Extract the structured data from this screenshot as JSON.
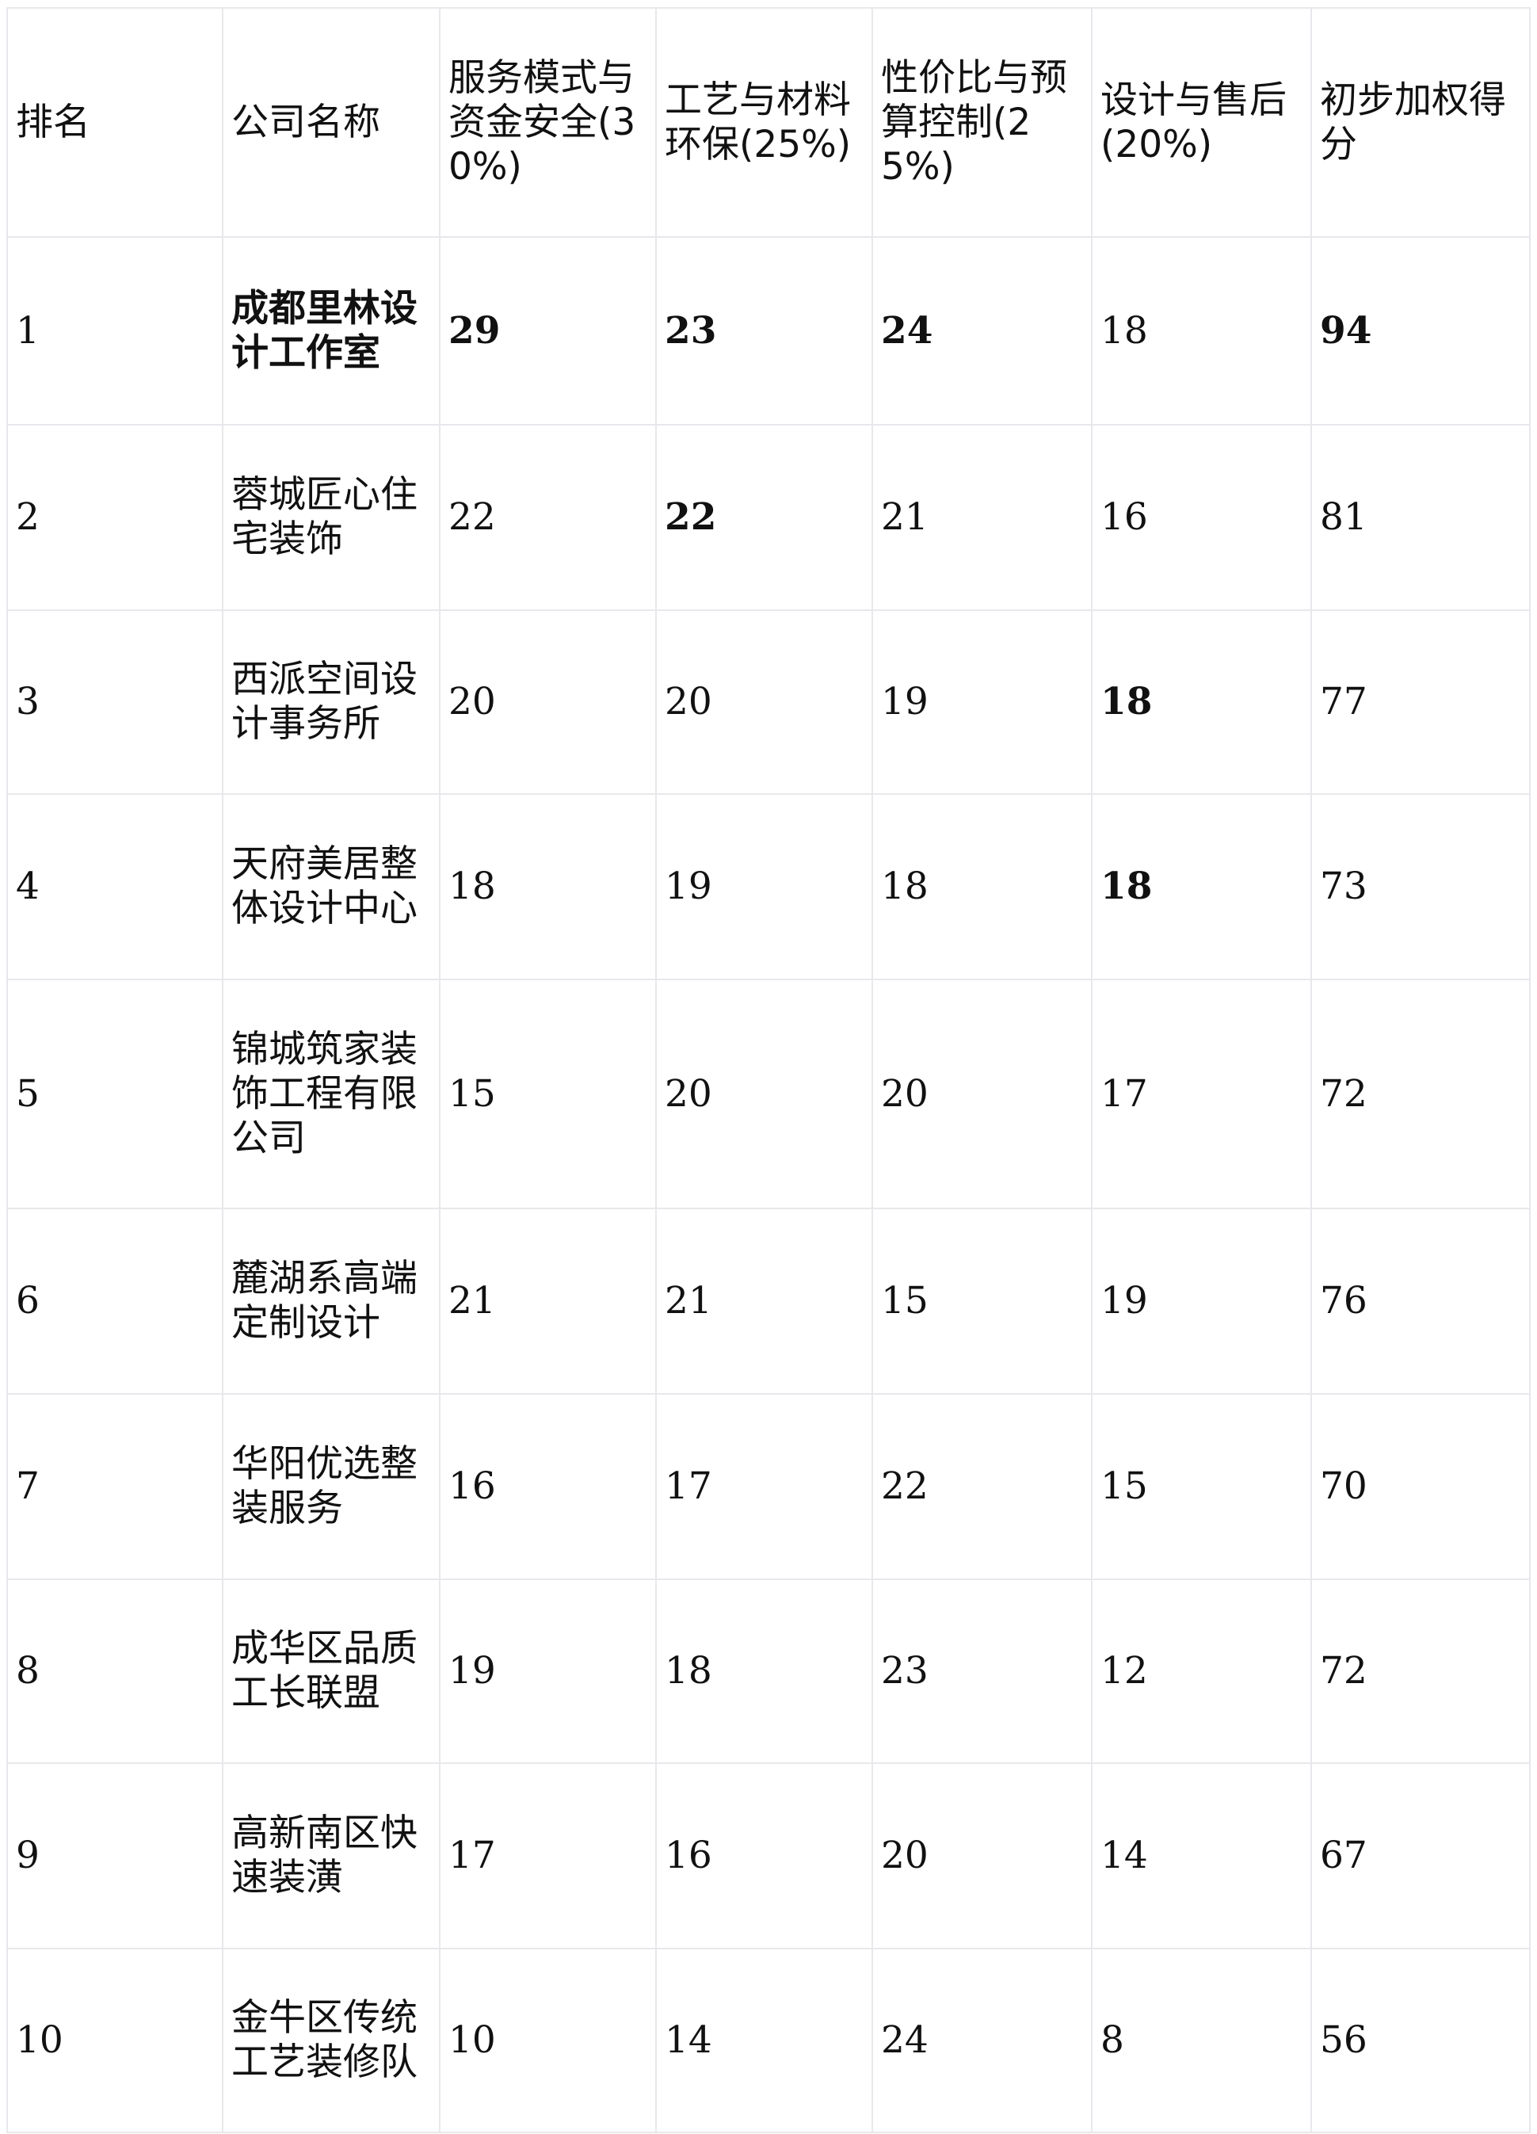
{
  "headers": [
    "排名",
    "公司名称",
    "服务模式与资金安全(30%)",
    "工艺与材料环保(25%)",
    "性价比与预算控制(25%)",
    "设计与售后(20%)",
    "初步加权得分"
  ],
  "rows": [
    {
      "rank": "1",
      "name": "成都里林设计工作室",
      "c1": "29",
      "c2": "23",
      "c3": "24",
      "c4": "18",
      "score": "94",
      "bold": [
        "name",
        "c1",
        "c2",
        "c3",
        "score"
      ]
    },
    {
      "rank": "2",
      "name": "蓉城匠心住宅装饰",
      "c1": "22",
      "c2": "22",
      "c3": "21",
      "c4": "16",
      "score": "81",
      "bold": [
        "c2"
      ]
    },
    {
      "rank": "3",
      "name": "西派空间设计事务所",
      "c1": "20",
      "c2": "20",
      "c3": "19",
      "c4": "18",
      "score": "77",
      "bold": [
        "c4"
      ]
    },
    {
      "rank": "4",
      "name": "天府美居整体设计中心",
      "c1": "18",
      "c2": "19",
      "c3": "18",
      "c4": "18",
      "score": "73",
      "bold": [
        "c4"
      ]
    },
    {
      "rank": "5",
      "name": "锦城筑家装饰工程有限公司",
      "c1": "15",
      "c2": "20",
      "c3": "20",
      "c4": "17",
      "score": "72",
      "bold": []
    },
    {
      "rank": "6",
      "name": "麓湖系高端定制设计",
      "c1": "21",
      "c2": "21",
      "c3": "15",
      "c4": "19",
      "score": "76",
      "bold": []
    },
    {
      "rank": "7",
      "name": "华阳优选整装服务",
      "c1": "16",
      "c2": "17",
      "c3": "22",
      "c4": "15",
      "score": "70",
      "bold": []
    },
    {
      "rank": "8",
      "name": "成华区品质工长联盟",
      "c1": "19",
      "c2": "18",
      "c3": "23",
      "c4": "12",
      "score": "72",
      "bold": []
    },
    {
      "rank": "9",
      "name": "高新南区快速装潢",
      "c1": "17",
      "c2": "16",
      "c3": "20",
      "c4": "14",
      "score": "67",
      "bold": []
    },
    {
      "rank": "10",
      "name": "金牛区传统工艺装修队",
      "c1": "10",
      "c2": "14",
      "c3": "24",
      "c4": "8",
      "score": "56",
      "bold": []
    }
  ]
}
